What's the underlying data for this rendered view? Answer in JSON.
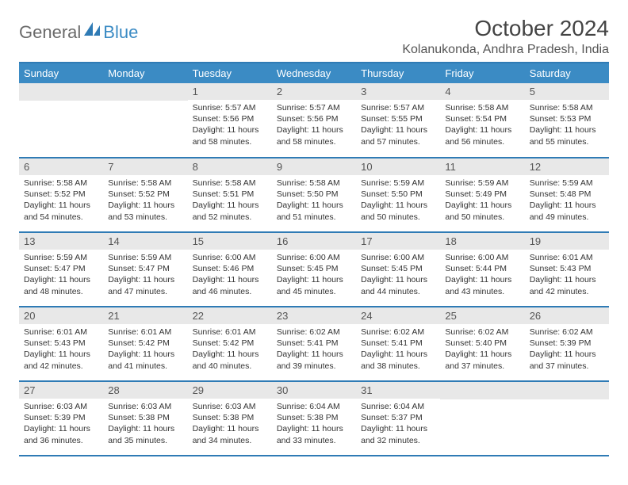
{
  "logo": {
    "part1": "General",
    "part2": "Blue"
  },
  "title": "October 2024",
  "location": "Kolanukonda, Andhra Pradesh, India",
  "colors": {
    "header_bg": "#3b8bc4",
    "rule": "#2f7bb5",
    "date_bar_bg": "#e8e8e8",
    "text": "#333333",
    "logo_gray": "#6a6a6a",
    "logo_blue": "#3b8bc4"
  },
  "day_headers": [
    "Sunday",
    "Monday",
    "Tuesday",
    "Wednesday",
    "Thursday",
    "Friday",
    "Saturday"
  ],
  "weeks": [
    [
      null,
      null,
      {
        "d": "1",
        "sr": "5:57 AM",
        "ss": "5:56 PM",
        "dl": "11 hours and 58 minutes."
      },
      {
        "d": "2",
        "sr": "5:57 AM",
        "ss": "5:56 PM",
        "dl": "11 hours and 58 minutes."
      },
      {
        "d": "3",
        "sr": "5:57 AM",
        "ss": "5:55 PM",
        "dl": "11 hours and 57 minutes."
      },
      {
        "d": "4",
        "sr": "5:58 AM",
        "ss": "5:54 PM",
        "dl": "11 hours and 56 minutes."
      },
      {
        "d": "5",
        "sr": "5:58 AM",
        "ss": "5:53 PM",
        "dl": "11 hours and 55 minutes."
      }
    ],
    [
      {
        "d": "6",
        "sr": "5:58 AM",
        "ss": "5:52 PM",
        "dl": "11 hours and 54 minutes."
      },
      {
        "d": "7",
        "sr": "5:58 AM",
        "ss": "5:52 PM",
        "dl": "11 hours and 53 minutes."
      },
      {
        "d": "8",
        "sr": "5:58 AM",
        "ss": "5:51 PM",
        "dl": "11 hours and 52 minutes."
      },
      {
        "d": "9",
        "sr": "5:58 AM",
        "ss": "5:50 PM",
        "dl": "11 hours and 51 minutes."
      },
      {
        "d": "10",
        "sr": "5:59 AM",
        "ss": "5:50 PM",
        "dl": "11 hours and 50 minutes."
      },
      {
        "d": "11",
        "sr": "5:59 AM",
        "ss": "5:49 PM",
        "dl": "11 hours and 50 minutes."
      },
      {
        "d": "12",
        "sr": "5:59 AM",
        "ss": "5:48 PM",
        "dl": "11 hours and 49 minutes."
      }
    ],
    [
      {
        "d": "13",
        "sr": "5:59 AM",
        "ss": "5:47 PM",
        "dl": "11 hours and 48 minutes."
      },
      {
        "d": "14",
        "sr": "5:59 AM",
        "ss": "5:47 PM",
        "dl": "11 hours and 47 minutes."
      },
      {
        "d": "15",
        "sr": "6:00 AM",
        "ss": "5:46 PM",
        "dl": "11 hours and 46 minutes."
      },
      {
        "d": "16",
        "sr": "6:00 AM",
        "ss": "5:45 PM",
        "dl": "11 hours and 45 minutes."
      },
      {
        "d": "17",
        "sr": "6:00 AM",
        "ss": "5:45 PM",
        "dl": "11 hours and 44 minutes."
      },
      {
        "d": "18",
        "sr": "6:00 AM",
        "ss": "5:44 PM",
        "dl": "11 hours and 43 minutes."
      },
      {
        "d": "19",
        "sr": "6:01 AM",
        "ss": "5:43 PM",
        "dl": "11 hours and 42 minutes."
      }
    ],
    [
      {
        "d": "20",
        "sr": "6:01 AM",
        "ss": "5:43 PM",
        "dl": "11 hours and 42 minutes."
      },
      {
        "d": "21",
        "sr": "6:01 AM",
        "ss": "5:42 PM",
        "dl": "11 hours and 41 minutes."
      },
      {
        "d": "22",
        "sr": "6:01 AM",
        "ss": "5:42 PM",
        "dl": "11 hours and 40 minutes."
      },
      {
        "d": "23",
        "sr": "6:02 AM",
        "ss": "5:41 PM",
        "dl": "11 hours and 39 minutes."
      },
      {
        "d": "24",
        "sr": "6:02 AM",
        "ss": "5:41 PM",
        "dl": "11 hours and 38 minutes."
      },
      {
        "d": "25",
        "sr": "6:02 AM",
        "ss": "5:40 PM",
        "dl": "11 hours and 37 minutes."
      },
      {
        "d": "26",
        "sr": "6:02 AM",
        "ss": "5:39 PM",
        "dl": "11 hours and 37 minutes."
      }
    ],
    [
      {
        "d": "27",
        "sr": "6:03 AM",
        "ss": "5:39 PM",
        "dl": "11 hours and 36 minutes."
      },
      {
        "d": "28",
        "sr": "6:03 AM",
        "ss": "5:38 PM",
        "dl": "11 hours and 35 minutes."
      },
      {
        "d": "29",
        "sr": "6:03 AM",
        "ss": "5:38 PM",
        "dl": "11 hours and 34 minutes."
      },
      {
        "d": "30",
        "sr": "6:04 AM",
        "ss": "5:38 PM",
        "dl": "11 hours and 33 minutes."
      },
      {
        "d": "31",
        "sr": "6:04 AM",
        "ss": "5:37 PM",
        "dl": "11 hours and 32 minutes."
      },
      null,
      null
    ]
  ],
  "labels": {
    "sunrise": "Sunrise:",
    "sunset": "Sunset:",
    "daylight": "Daylight:"
  }
}
